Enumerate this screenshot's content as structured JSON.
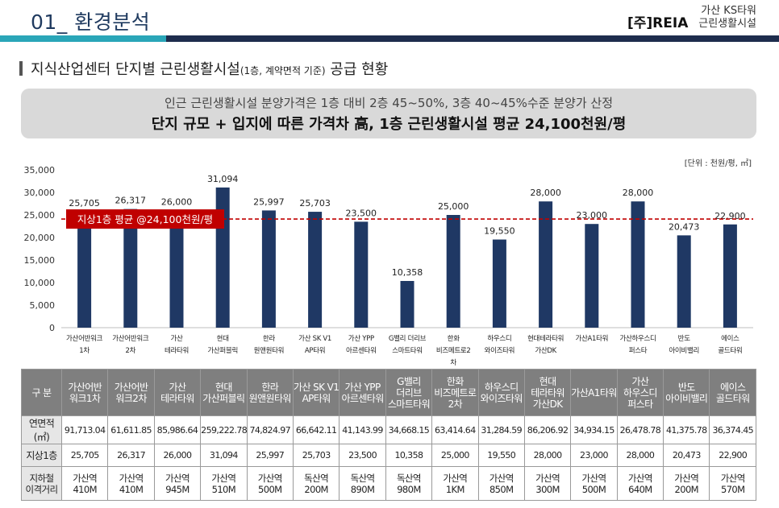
{
  "header": {
    "section_title": "01_ 환경분석",
    "brand": "[주]REIA",
    "project_line1": "가산 KS타워",
    "project_line2": "근린생활시설"
  },
  "subhead": {
    "main": "지식산업센터 단지별 근린생활시설",
    "small": "(1층, 계약면적 기준)",
    "tail": " 공급 현황"
  },
  "summary": {
    "line1": "인근 근린생활시설 분양가격은 1층 대비 2층 45~50%, 3층 40~45%수준 분양가 산정",
    "line2": "단지 규모 + 입지에 따른 가격차 高, 1층 근린생활시설 평균 24,100천원/평"
  },
  "unit_label": "[단위 : 천원/평, ㎡]",
  "colors": {
    "bar": "#1f3864",
    "avg_line": "#c00000",
    "avg_label_bg": "#c00000",
    "teal": "#2aa6b8",
    "navy": "#1e2d4d"
  },
  "chart_data": {
    "type": "bar",
    "categories": [
      [
        "가산어반워크",
        "1차"
      ],
      [
        "가산어반워크",
        "2차"
      ],
      [
        "가산",
        "테라타워"
      ],
      [
        "현대",
        "가산퍼블릭"
      ],
      [
        "한라",
        "원앤원타워"
      ],
      [
        "가산 SK V1",
        "AP타워"
      ],
      [
        "가산 YPP",
        "아르센타워"
      ],
      [
        "G밸리 더리브",
        "스마트타워"
      ],
      [
        "한화",
        "비즈메트로2",
        "차"
      ],
      [
        "하우스디",
        "와이즈타워"
      ],
      [
        "현대테라타워",
        "가산DK"
      ],
      [
        "가산A1타워"
      ],
      [
        "가산하우스디",
        "퍼스타"
      ],
      [
        "반도",
        "아이비밸리"
      ],
      [
        "에이스",
        "골드타워"
      ]
    ],
    "values": [
      25705,
      26317,
      26000,
      31094,
      25997,
      25703,
      23500,
      10358,
      25000,
      19550,
      28000,
      23000,
      28000,
      20473,
      22900
    ],
    "value_labels": [
      "25,705",
      "26,317",
      "26,000",
      "31,094",
      "25,997",
      "25,703",
      "23,500",
      "10,358",
      "25,000",
      "19,550",
      "28,000",
      "23,000",
      "28,000",
      "20,473",
      "22,900"
    ],
    "ylim": [
      0,
      35000
    ],
    "yticks": [
      0,
      5000,
      10000,
      15000,
      20000,
      25000,
      30000,
      35000
    ],
    "ytick_labels": [
      "0",
      "5,000",
      "10,000",
      "15,000",
      "20,000",
      "25,000",
      "30,000",
      "35,000"
    ],
    "average": 24100,
    "average_label": "지상1층 평균 @24,100천원/평",
    "grid": false
  },
  "table": {
    "header_label": "구 분",
    "columns": [
      [
        "가산어반",
        "워크1차"
      ],
      [
        "가산어반",
        "워크2차"
      ],
      [
        "가산",
        "테라타워"
      ],
      [
        "현대",
        "가산퍼블릭"
      ],
      [
        "한라",
        "원앤원타워"
      ],
      [
        "가산 SK V1",
        "AP타워"
      ],
      [
        "가산 YPP",
        "아르센타워"
      ],
      [
        "G밸리",
        "더리브",
        "스마트타워"
      ],
      [
        "한화",
        "비즈메트로",
        "2차"
      ],
      [
        "하우스디",
        "와이즈타워"
      ],
      [
        "현대",
        "테라타워",
        "가산DK"
      ],
      [
        "가산A1타워"
      ],
      [
        "가산",
        "하우스디",
        "퍼스타"
      ],
      [
        "반도",
        "아이비밸리"
      ],
      [
        "에이스",
        "골드타워"
      ]
    ],
    "rows": [
      {
        "label": "연면적(㎡)",
        "values": [
          "91,713.04",
          "61,611.85",
          "85,986.64",
          "259,222.78",
          "74,824.97",
          "66,642.11",
          "41,143.99",
          "34,668.15",
          "63,414.64",
          "31,284.59",
          "86,206.92",
          "34,934.15",
          "26,478.78",
          "41,375.78",
          "36,374.45"
        ]
      },
      {
        "label": "지상1층",
        "values": [
          "25,705",
          "26,317",
          "26,000",
          "31,094",
          "25,997",
          "25,703",
          "23,500",
          "10,358",
          "25,000",
          "19,550",
          "28,000",
          "23,000",
          "28,000",
          "20,473",
          "22,900"
        ]
      },
      {
        "label": [
          "지하철",
          "이격거리"
        ],
        "values": [
          [
            "가산역",
            "410M"
          ],
          [
            "가산역",
            "410M"
          ],
          [
            "가산역",
            "945M"
          ],
          [
            "가산역",
            "510M"
          ],
          [
            "가산역",
            "500M"
          ],
          [
            "독산역",
            "200M"
          ],
          [
            "독산역",
            "890M"
          ],
          [
            "독산역",
            "980M"
          ],
          [
            "가산역",
            "1KM"
          ],
          [
            "가산역",
            "850M"
          ],
          [
            "가산역",
            "300M"
          ],
          [
            "가산역",
            "500M"
          ],
          [
            "가산역",
            "640M"
          ],
          [
            "가산역",
            "200M"
          ],
          [
            "가산역",
            "570M"
          ]
        ]
      }
    ]
  }
}
